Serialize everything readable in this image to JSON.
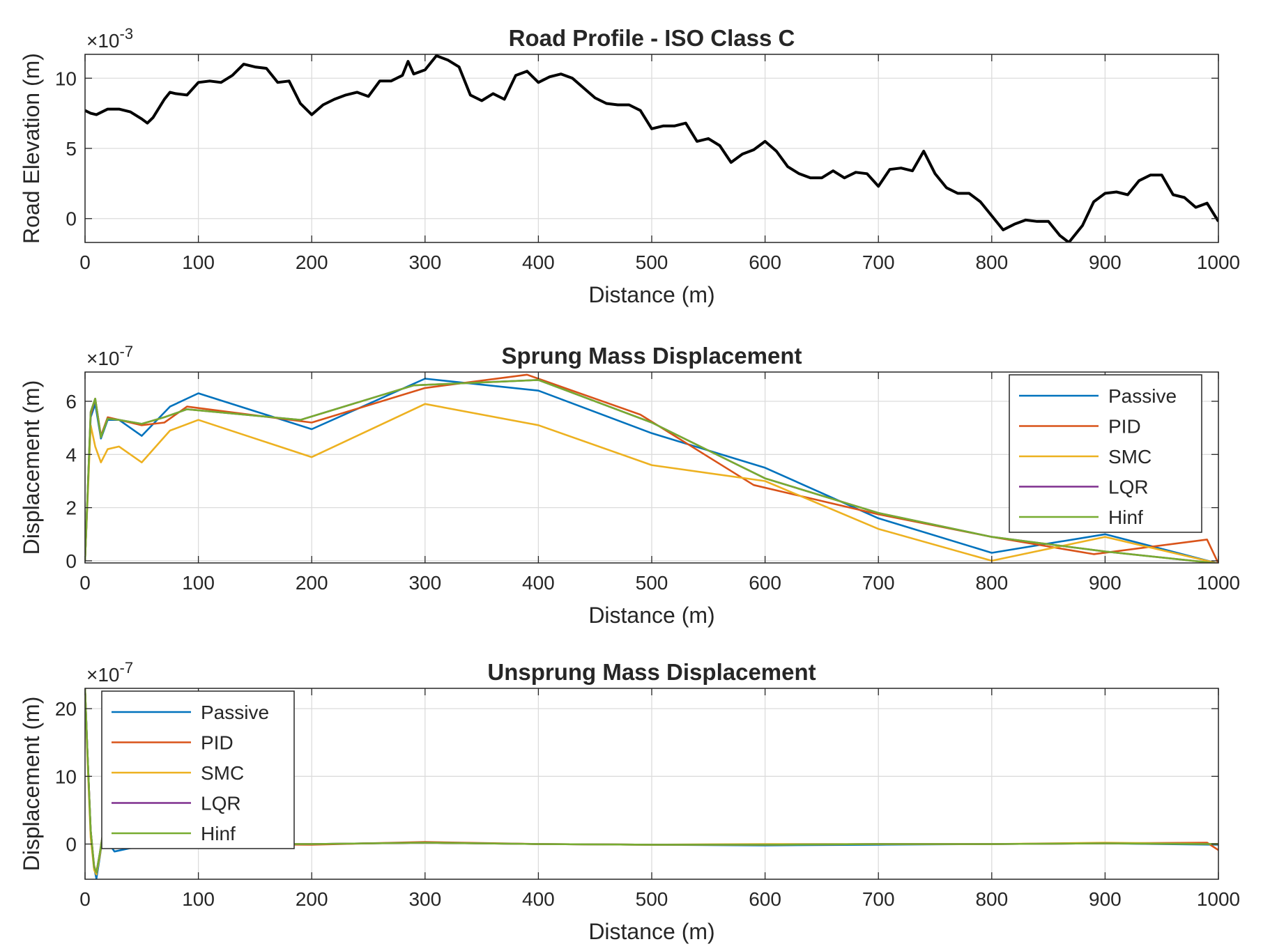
{
  "chart_data": [
    {
      "type": "line",
      "title": "Road Profile - ISO Class C",
      "xlabel": "Distance (m)",
      "ylabel": "Road Elevation (m)",
      "y_exponent_label": "×10",
      "y_exponent": "-3",
      "xlim": [
        0,
        1000
      ],
      "ylim": [
        -0.0017,
        0.0117
      ],
      "xticks": [
        0,
        100,
        200,
        300,
        400,
        500,
        600,
        700,
        800,
        900,
        1000
      ],
      "yticks": [
        0,
        0.005,
        0.01
      ],
      "ytick_labels": [
        "0",
        "5",
        "10"
      ],
      "grid": true,
      "legend": null,
      "series": [
        {
          "color": "#000000",
          "x": [
            0,
            5,
            10,
            20,
            30,
            40,
            50,
            55,
            60,
            70,
            75,
            80,
            90,
            100,
            110,
            120,
            130,
            140,
            150,
            160,
            170,
            180,
            190,
            200,
            210,
            220,
            230,
            240,
            250,
            260,
            270,
            280,
            285,
            290,
            300,
            310,
            320,
            330,
            340,
            350,
            360,
            370,
            380,
            390,
            400,
            410,
            420,
            430,
            440,
            450,
            460,
            470,
            480,
            490,
            500,
            510,
            520,
            530,
            540,
            550,
            560,
            570,
            580,
            590,
            600,
            610,
            620,
            630,
            640,
            650,
            660,
            670,
            680,
            690,
            700,
            710,
            720,
            730,
            740,
            750,
            760,
            770,
            780,
            790,
            800,
            810,
            820,
            830,
            840,
            850,
            860,
            868,
            880,
            890,
            900,
            910,
            920,
            930,
            940,
            950,
            960,
            970,
            980,
            990,
            1000
          ],
          "y": [
            0.0077,
            0.0075,
            0.0074,
            0.0078,
            0.0078,
            0.0076,
            0.0071,
            0.0068,
            0.0072,
            0.0085,
            0.009,
            0.0089,
            0.0088,
            0.0097,
            0.0098,
            0.0097,
            0.0102,
            0.011,
            0.0108,
            0.0107,
            0.0097,
            0.0098,
            0.0082,
            0.0074,
            0.0081,
            0.0085,
            0.0088,
            0.009,
            0.0087,
            0.0098,
            0.0098,
            0.0102,
            0.0112,
            0.0103,
            0.0106,
            0.0116,
            0.0113,
            0.0108,
            0.0088,
            0.0084,
            0.0089,
            0.0085,
            0.0102,
            0.0105,
            0.0097,
            0.0101,
            0.0103,
            0.01,
            0.0093,
            0.0086,
            0.0082,
            0.0081,
            0.0081,
            0.0077,
            0.0064,
            0.0066,
            0.0066,
            0.0068,
            0.0055,
            0.0057,
            0.0052,
            0.004,
            0.0046,
            0.0049,
            0.0055,
            0.0048,
            0.0037,
            0.0032,
            0.0029,
            0.0029,
            0.0034,
            0.0029,
            0.0033,
            0.0032,
            0.0023,
            0.0035,
            0.0036,
            0.0034,
            0.0048,
            0.0032,
            0.0022,
            0.0018,
            0.0018,
            0.0012,
            0.0002,
            -0.0008,
            -0.0004,
            -0.0001,
            -0.0002,
            -0.0002,
            -0.0012,
            -0.0017,
            -0.0005,
            0.0012,
            0.0018,
            0.0019,
            0.0017,
            0.0027,
            0.0031,
            0.0031,
            0.0017,
            0.0015,
            0.0008,
            0.0011,
            -0.0002
          ]
        }
      ]
    },
    {
      "type": "line",
      "title": "Sprung Mass Displacement",
      "xlabel": "Distance (m)",
      "ylabel": "Displacement (m)",
      "y_exponent_label": "×10",
      "y_exponent": "-7",
      "xlim": [
        0,
        1000
      ],
      "ylim": [
        -8e-09,
        7.1e-07
      ],
      "xticks": [
        0,
        100,
        200,
        300,
        400,
        500,
        600,
        700,
        800,
        900,
        1000
      ],
      "yticks": [
        0,
        2e-07,
        4e-07,
        6e-07
      ],
      "ytick_labels": [
        "0",
        "2",
        "4",
        "6"
      ],
      "grid": true,
      "legend": "top-right",
      "series": [
        {
          "name": "Passive",
          "color": "#0072BD",
          "x": [
            0,
            5,
            9,
            14,
            20,
            30,
            50,
            75,
            100,
            200,
            300,
            400,
            500,
            600,
            700,
            800,
            900,
            1000
          ],
          "y": [
            0,
            5.4e-07,
            5.9e-07,
            4.6e-07,
            5.3e-07,
            5.3e-07,
            4.7e-07,
            5.8e-07,
            6.3e-07,
            4.95e-07,
            6.85e-07,
            6.4e-07,
            4.8e-07,
            3.5e-07,
            1.6e-07,
            3e-08,
            1e-07,
            -1e-08
          ]
        },
        {
          "name": "PID",
          "color": "#D95319",
          "x": [
            0,
            5,
            9,
            14,
            20,
            30,
            50,
            70,
            90,
            200,
            300,
            390,
            490,
            590,
            700,
            800,
            890,
            990,
            1000
          ],
          "y": [
            0,
            5.5e-07,
            6.1e-07,
            4.7e-07,
            5.4e-07,
            5.3e-07,
            5.1e-07,
            5.2e-07,
            5.8e-07,
            5.2e-07,
            6.5e-07,
            7e-07,
            5.5e-07,
            2.85e-07,
            1.75e-07,
            9e-08,
            2.5e-08,
            8e-08,
            -1e-08
          ]
        },
        {
          "name": "SMC",
          "color": "#EDB120",
          "x": [
            0,
            5,
            9,
            14,
            20,
            30,
            50,
            75,
            100,
            200,
            300,
            400,
            500,
            600,
            700,
            800,
            900,
            1000
          ],
          "y": [
            0,
            5.1e-07,
            4.3e-07,
            3.7e-07,
            4.2e-07,
            4.3e-07,
            3.7e-07,
            4.9e-07,
            5.3e-07,
            3.9e-07,
            5.9e-07,
            5.1e-07,
            3.6e-07,
            3e-07,
            1.2e-07,
            0.0,
            9e-08,
            -1e-08
          ]
        },
        {
          "name": "LQR",
          "color": "#7E2F8E",
          "x": [
            0,
            5,
            9,
            14,
            20,
            30,
            50,
            70,
            90,
            190,
            290,
            400,
            500,
            600,
            700,
            800,
            900,
            1000
          ],
          "y": [
            0,
            5.6e-07,
            6.1e-07,
            4.65e-07,
            5.35e-07,
            5.3e-07,
            5.15e-07,
            5.4e-07,
            5.7e-07,
            5.3e-07,
            6.6e-07,
            6.8e-07,
            5.2e-07,
            3.1e-07,
            1.8e-07,
            9e-08,
            3.5e-08,
            -1e-08
          ]
        },
        {
          "name": "Hinf",
          "color": "#77AC30",
          "x": [
            0,
            5,
            9,
            14,
            20,
            30,
            50,
            70,
            90,
            190,
            290,
            400,
            500,
            600,
            700,
            800,
            900,
            1000
          ],
          "y": [
            0,
            5.6e-07,
            6.1e-07,
            4.65e-07,
            5.35e-07,
            5.3e-07,
            5.15e-07,
            5.4e-07,
            5.7e-07,
            5.3e-07,
            6.6e-07,
            6.8e-07,
            5.2e-07,
            3.1e-07,
            1.8e-07,
            9e-08,
            3.5e-08,
            -1e-08
          ]
        }
      ]
    },
    {
      "type": "line",
      "title": "Unsprung Mass Displacement",
      "xlabel": "Distance (m)",
      "ylabel": "Displacement (m)",
      "y_exponent_label": "×10",
      "y_exponent": "-7",
      "xlim": [
        0,
        1000
      ],
      "ylim": [
        -5.2e-07,
        2.3e-06
      ],
      "xticks": [
        0,
        100,
        200,
        300,
        400,
        500,
        600,
        700,
        800,
        900,
        1000
      ],
      "yticks": [
        0,
        1e-06,
        2e-06
      ],
      "ytick_labels": [
        "0",
        "10",
        "20"
      ],
      "grid": true,
      "legend": "top-left",
      "series": [
        {
          "name": "Passive",
          "color": "#0072BD",
          "x": [
            0,
            2,
            5,
            8,
            10,
            13,
            16,
            20,
            26,
            40,
            100,
            200,
            300,
            400,
            500,
            600,
            700,
            800,
            900,
            1000
          ],
          "y": [
            2.3e-06,
            1.4e-06,
            2e-07,
            -3.5e-07,
            -5.1e-07,
            -2e-07,
            1.5e-07,
            3e-08,
            -1.1e-07,
            -6e-08,
            -1e-08,
            0,
            2e-08,
            0,
            -1e-08,
            -2e-08,
            -1e-08,
            0,
            1e-08,
            -1e-08
          ]
        },
        {
          "name": "PID",
          "color": "#D95319",
          "x": [
            0,
            2,
            5,
            8,
            10,
            13,
            16,
            20,
            30,
            100,
            200,
            300,
            400,
            500,
            600,
            700,
            800,
            900,
            990,
            1000
          ],
          "y": [
            2.3e-06,
            1.4e-06,
            2e-07,
            -3.2e-07,
            -4.3e-07,
            -1.5e-07,
            1.8e-07,
            5e-08,
            0,
            0,
            -1e-08,
            3e-08,
            0,
            -1e-08,
            -1e-08,
            0,
            0,
            1e-08,
            2e-08,
            -9e-08
          ]
        },
        {
          "name": "SMC",
          "color": "#EDB120",
          "x": [
            0,
            2,
            5,
            8,
            10,
            13,
            16,
            20,
            30,
            100,
            200,
            300,
            400,
            500,
            600,
            700,
            800,
            900,
            1000
          ],
          "y": [
            2.3e-06,
            1.3e-06,
            1e-07,
            -3.8e-07,
            -4.5e-07,
            -1.8e-07,
            1.6e-07,
            4e-08,
            0,
            0,
            0,
            2e-08,
            0,
            -1e-08,
            0,
            0,
            0,
            2e-08,
            0
          ]
        },
        {
          "name": "LQR",
          "color": "#7E2F8E",
          "x": [
            0,
            2,
            5,
            8,
            10,
            13,
            16,
            20,
            30,
            100,
            200,
            300,
            400,
            500,
            600,
            700,
            800,
            900,
            1000
          ],
          "y": [
            2.3e-06,
            1.4e-06,
            2e-07,
            -3.4e-07,
            -4.2e-07,
            -1.4e-07,
            1.8e-07,
            5e-08,
            0,
            0,
            0,
            2e-08,
            0,
            -1e-08,
            -1e-08,
            0,
            0,
            1e-08,
            0
          ]
        },
        {
          "name": "Hinf",
          "color": "#77AC30",
          "x": [
            0,
            2,
            5,
            8,
            10,
            13,
            16,
            20,
            30,
            100,
            200,
            300,
            400,
            500,
            600,
            700,
            800,
            900,
            1000
          ],
          "y": [
            2.3e-06,
            1.4e-06,
            2e-07,
            -3.4e-07,
            -4.2e-07,
            -1.4e-07,
            1.8e-07,
            5e-08,
            0,
            0,
            0,
            2e-08,
            0,
            -1e-08,
            -1e-08,
            0,
            0,
            1e-08,
            0
          ]
        }
      ]
    }
  ]
}
